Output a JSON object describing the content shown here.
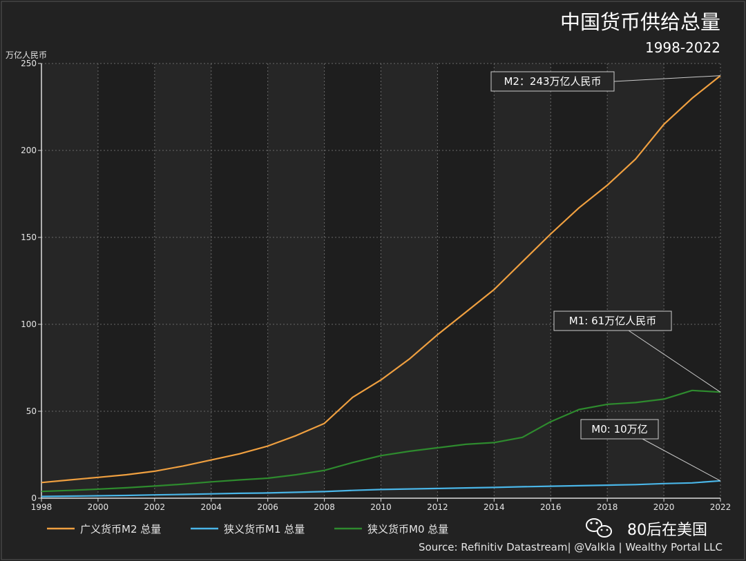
{
  "chart_data": {
    "type": "line",
    "title": "中国货币供给总量",
    "subtitle": "1998-2022",
    "ylabel": "万亿人民币",
    "xlim": [
      1998,
      2022
    ],
    "ylim": [
      0,
      250
    ],
    "x_ticks": [
      "1998",
      "2000",
      "2002",
      "2004",
      "2006",
      "2008",
      "2010",
      "2012",
      "2014",
      "2016",
      "2018",
      "2020",
      "2022"
    ],
    "y_ticks": [
      "0",
      "50",
      "100",
      "150",
      "200",
      "250"
    ],
    "grid": true,
    "legend_position": "bottom-left",
    "x": [
      1998,
      1999,
      2000,
      2001,
      2002,
      2003,
      2004,
      2005,
      2006,
      2007,
      2008,
      2009,
      2010,
      2011,
      2012,
      2013,
      2014,
      2015,
      2016,
      2017,
      2018,
      2019,
      2020,
      2021,
      2022
    ],
    "series": [
      {
        "name": "广义货币M2 总量",
        "color": "#f0a040",
        "values": [
          9.0,
          10.5,
          12.0,
          13.5,
          15.5,
          18.5,
          22.0,
          25.5,
          30.0,
          36.0,
          43.0,
          58.0,
          68.0,
          80.0,
          94.0,
          107.0,
          120.0,
          136.0,
          152.0,
          167.0,
          180.0,
          195.0,
          215.0,
          230.0,
          243.0
        ]
      },
      {
        "name": "狭义货币M1 总量",
        "color": "#4ab6e8",
        "values": [
          1.0,
          1.2,
          1.4,
          1.6,
          1.9,
          2.2,
          2.5,
          2.8,
          3.0,
          3.4,
          3.8,
          4.5,
          5.0,
          5.3,
          5.6,
          5.9,
          6.2,
          6.6,
          6.9,
          7.2,
          7.5,
          7.8,
          8.4,
          8.8,
          10.0
        ]
      },
      {
        "name": "狭义货币M0 总量",
        "color": "#2e8b2e",
        "values": [
          3.9,
          4.5,
          5.2,
          6.0,
          7.0,
          8.1,
          9.4,
          10.5,
          11.5,
          13.5,
          16.0,
          20.5,
          24.5,
          27.0,
          29.0,
          31.0,
          32.0,
          35.0,
          44.0,
          51.0,
          54.0,
          55.0,
          57.0,
          62.0,
          61.0
        ]
      }
    ],
    "annotations": [
      {
        "text": "M2：243万亿人民币",
        "series": 0
      },
      {
        "text": "M1: 61万亿人民币",
        "series": 2
      },
      {
        "text": "M0: 10万亿",
        "series": 1
      }
    ],
    "source": "Source: Refinitiv Datastream| @Valkla | Wealthy Portal LLC"
  },
  "branding": {
    "label": "80后在美国",
    "icon": "wechat-icon"
  }
}
